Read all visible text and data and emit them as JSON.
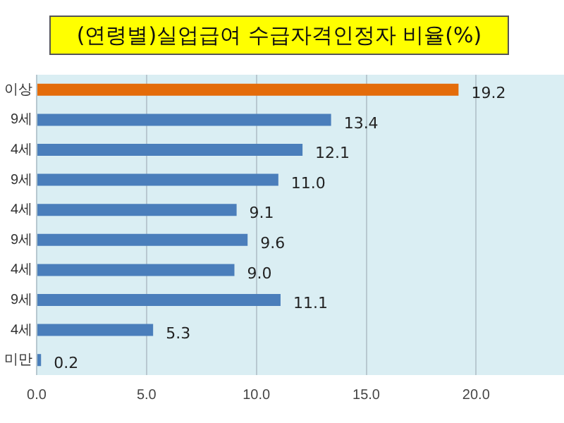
{
  "chart_data": {
    "type": "bar",
    "orientation": "horizontal",
    "title": "(연령별)실업급여 수급자격인정자 비율(%)",
    "categories": [
      "이상",
      "9세",
      "4세",
      "9세",
      "4세",
      "9세",
      "4세",
      "9세",
      "4세",
      "미만"
    ],
    "values": [
      19.2,
      13.4,
      12.1,
      11.0,
      9.1,
      9.6,
      9.0,
      11.1,
      5.3,
      0.2
    ],
    "colors": [
      "#e46c0a",
      "#4a7ebb",
      "#4a7ebb",
      "#4a7ebb",
      "#4a7ebb",
      "#4a7ebb",
      "#4a7ebb",
      "#4a7ebb",
      "#4a7ebb",
      "#4a7ebb"
    ],
    "value_labels": [
      "19.2",
      "13.4",
      "12.1",
      "11.0",
      "9.1",
      "9.6",
      "9.0",
      "11.1",
      "5.3",
      "0.2"
    ],
    "xlim": [
      0,
      24
    ],
    "xticks": [
      {
        "value": 0,
        "label": "0.0"
      },
      {
        "value": 5,
        "label": "5.0"
      },
      {
        "value": 10,
        "label": "10.0"
      },
      {
        "value": 15,
        "label": "15.0"
      },
      {
        "value": 20,
        "label": "20.0"
      }
    ],
    "grid": "x",
    "legend": false
  }
}
